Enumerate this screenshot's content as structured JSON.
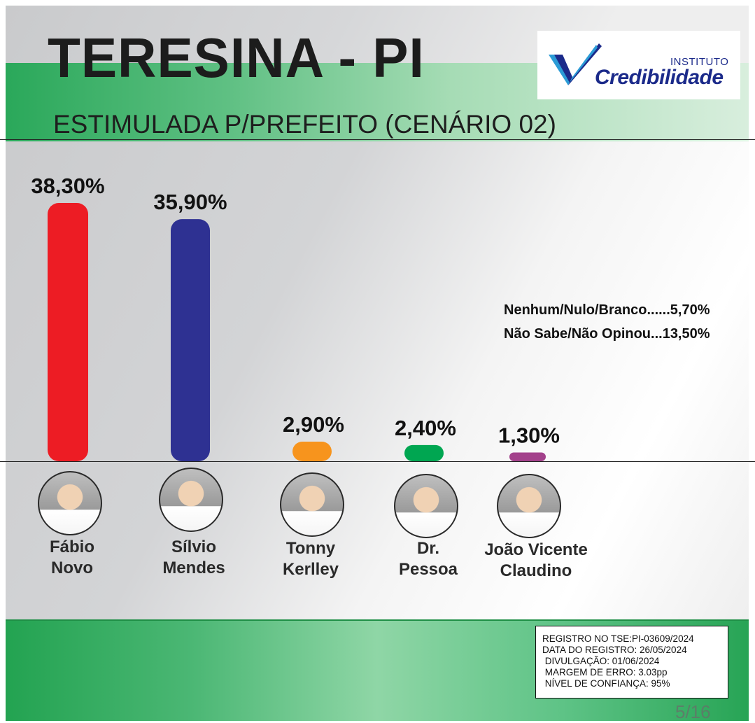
{
  "header": {
    "title": "TERESINA - PI",
    "subtitle": "ESTIMULADA P/PREFEITO (CENÁRIO 02)",
    "logo_top": "INSTITUTO",
    "logo_main": "Credibilidade"
  },
  "colors": {
    "fabio": "#ed1c24",
    "silvio": "#2e3192",
    "tonny": "#f7941d",
    "pessoa": "#00a651",
    "joao": "#a3418b",
    "green_band": "#23a351"
  },
  "chart_data": {
    "type": "bar",
    "title": "ESTIMULADA P/PREFEITO (CENÁRIO 02)",
    "categories": [
      "Fábio Novo",
      "Sílvio Mendes",
      "Tonny Kerlley",
      "Dr. Pessoa",
      "João Vicente Claudino"
    ],
    "values": [
      38.3,
      35.9,
      2.9,
      2.4,
      1.3
    ],
    "value_labels": [
      "38,30%",
      "35,90%",
      "2,90%",
      "2,40%",
      "1,30%"
    ],
    "colors": [
      "#ed1c24",
      "#2e3192",
      "#f7941d",
      "#00a651",
      "#a3418b"
    ],
    "ylim": [
      0,
      40
    ],
    "grid": false,
    "legend": "none"
  },
  "candidates": [
    {
      "line1": "Fábio",
      "line2": "Novo"
    },
    {
      "line1": "Sílvio",
      "line2": "Mendes"
    },
    {
      "line1": "Tonny",
      "line2": "Kerlley"
    },
    {
      "line1": "Dr.",
      "line2": "Pessoa"
    },
    {
      "line1": "João Vicente",
      "line2": "Claudino"
    }
  ],
  "others": {
    "nulo": "Nenhum/Nulo/Branco......5,70%",
    "nao_sabe": "Não Sabe/Não Opinou...13,50%"
  },
  "registration": {
    "line1": "REGISTRO NO TSE:PI-03609/2024",
    "line2": "DATA DO REGISTRO: 26/05/2024",
    "line3": " DIVULGAÇÃO: 01/06/2024",
    "line4": " MARGEM DE ERRO: 3.03pp",
    "line5": " NÍVEL DE CONFIANÇA: 95%"
  },
  "page_indicator": "5/16"
}
